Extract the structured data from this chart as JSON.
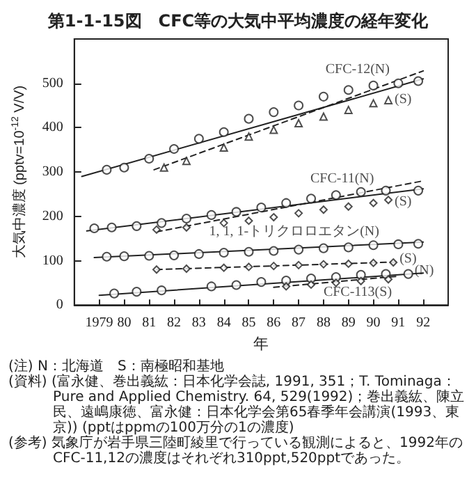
{
  "chart_data": {
    "type": "line",
    "title": "第1-1-15図　CFC等の大気中平均濃度の経年変化",
    "xlabel": "年",
    "ylabel": "大気中濃度 (pptv=10$^{-12}$ V/V)",
    "xlim": [
      1978,
      1993
    ],
    "xticks": [
      {
        "value": 1979,
        "label": "1979"
      },
      {
        "value": 1980,
        "label": "80"
      },
      {
        "value": 1981,
        "label": "81"
      },
      {
        "value": 1982,
        "label": "82"
      },
      {
        "value": 1983,
        "label": "83"
      },
      {
        "value": 1984,
        "label": "84"
      },
      {
        "value": 1985,
        "label": "85"
      },
      {
        "value": 1986,
        "label": "86"
      },
      {
        "value": 1987,
        "label": "87"
      },
      {
        "value": 1988,
        "label": "88"
      },
      {
        "value": 1989,
        "label": "89"
      },
      {
        "value": 1990,
        "label": "90"
      },
      {
        "value": 1991,
        "label": "91"
      },
      {
        "value": 1992,
        "label": "92"
      }
    ],
    "ylim": [
      0,
      600
    ],
    "yticks": [
      0,
      100,
      200,
      300,
      400,
      500
    ],
    "grid": false,
    "series": [
      {
        "type": "scatter",
        "name": "CFC-12(N)",
        "marker": "circle",
        "color": "#222222",
        "x": [
          1979.3,
          1980,
          1981,
          1982,
          1983,
          1984,
          1985,
          1986,
          1987,
          1988,
          1989,
          1990,
          1991,
          1991.8
        ],
        "values": [
          305,
          310,
          330,
          352,
          375,
          390,
          420,
          435,
          450,
          470,
          485,
          495,
          500,
          505
        ]
      },
      {
        "type": "line",
        "marker": "none",
        "line_style": "solid",
        "color": "#222222",
        "x": [
          1978.3,
          1992
        ],
        "values": [
          290,
          510
        ]
      },
      {
        "type": "scatter",
        "name": "(S)",
        "marker": "triangle",
        "color": "#222222",
        "x": [
          1981.6,
          1982.5,
          1984,
          1985,
          1986,
          1987,
          1988,
          1989,
          1990,
          1990.6
        ],
        "values": [
          310,
          325,
          355,
          380,
          395,
          410,
          425,
          440,
          455,
          462
        ]
      },
      {
        "type": "line",
        "marker": "none",
        "line_style": "dashed",
        "color": "#222222",
        "x": [
          1981.2,
          1992
        ],
        "values": [
          305,
          528
        ]
      },
      {
        "type": "scatter",
        "name": "CFC-11(N)",
        "marker": "circle",
        "color": "#222222",
        "x": [
          1978.8,
          1979.5,
          1980.5,
          1981.5,
          1982.5,
          1983.5,
          1984.5,
          1985.5,
          1986.5,
          1987.5,
          1988.5,
          1989.5,
          1990.5,
          1991.8
        ],
        "values": [
          173,
          175,
          178,
          185,
          195,
          203,
          210,
          220,
          230,
          240,
          248,
          255,
          258,
          258
        ]
      },
      {
        "type": "line",
        "marker": "none",
        "line_style": "solid",
        "color": "#222222",
        "x": [
          1978.5,
          1992
        ],
        "values": [
          167,
          262
        ]
      },
      {
        "type": "scatter",
        "name": "(S)",
        "marker": "diamond",
        "color": "#222222",
        "x": [
          1981.3,
          1982.5,
          1984,
          1985,
          1986,
          1987,
          1988,
          1989,
          1990,
          1990.6
        ],
        "values": [
          170,
          175,
          185,
          190,
          198,
          207,
          215,
          222,
          230,
          237
        ]
      },
      {
        "type": "line",
        "marker": "none",
        "line_style": "dashed",
        "color": "#222222",
        "x": [
          1981.3,
          1992
        ],
        "values": [
          165,
          280
        ]
      },
      {
        "type": "scatter",
        "name": "1, 1, 1-トリクロロエタン(N)",
        "marker": "circle",
        "color": "#222222",
        "x": [
          1979.3,
          1980,
          1981,
          1982,
          1983,
          1984,
          1985,
          1986,
          1987,
          1988,
          1989,
          1990,
          1991,
          1991.8
        ],
        "values": [
          109,
          110,
          111,
          112,
          115,
          118,
          120,
          122,
          125,
          128,
          130,
          135,
          137,
          138
        ]
      },
      {
        "type": "line",
        "marker": "none",
        "line_style": "solid",
        "color": "#222222",
        "x": [
          1978.8,
          1992
        ],
        "values": [
          107,
          142
        ]
      },
      {
        "type": "scatter",
        "name": "(S)",
        "marker": "diamond",
        "color": "#222222",
        "x": [
          1981.3,
          1982.5,
          1984,
          1985,
          1986,
          1987,
          1988,
          1989,
          1990,
          1990.8
        ],
        "values": [
          80,
          82,
          84,
          86,
          88,
          90,
          92,
          93,
          95,
          96
        ]
      },
      {
        "type": "line",
        "marker": "none",
        "line_style": "dashed",
        "color": "#222222",
        "x": [
          1981.3,
          1990.9
        ],
        "values": [
          80,
          97
        ]
      },
      {
        "type": "scatter",
        "name": "(N)",
        "marker": "circle",
        "color": "#222222",
        "x": [
          1979.6,
          1980.5,
          1981.5,
          1983.5,
          1984.5,
          1985.5,
          1986.5,
          1987.5,
          1988.5,
          1989.5,
          1990.5,
          1991.4
        ],
        "values": [
          26,
          30,
          33,
          42,
          45,
          52,
          55,
          60,
          63,
          68,
          70,
          70
        ]
      },
      {
        "type": "line",
        "marker": "none",
        "line_style": "solid",
        "color": "#222222",
        "x": [
          1979,
          1992
        ],
        "values": [
          22,
          72
        ]
      },
      {
        "type": "scatter",
        "name": "CFC-113(S)",
        "marker": "diamond",
        "color": "#222222",
        "x": [
          1986.5,
          1987.5,
          1988.5,
          1989.5,
          1990.6
        ],
        "values": [
          42,
          46,
          50,
          54,
          58
        ]
      },
      {
        "type": "line",
        "marker": "none",
        "line_style": "dashed",
        "color": "#222222",
        "x": [
          1986,
          1991
        ],
        "values": [
          40,
          65
        ]
      }
    ],
    "annotations": [
      "(注) N：北海道　S：南極昭和基地",
      "(資料) (富永健、巻出義紘：日本化学会誌, 1991, 351；T. Tominaga：Pure and Applied Chemistry. 64, 529(1992)；巻出義紘、陳立民、遠嶋康徳、富永健：日本化学会第65春季年会講演(1993、東京)) (pptはppmの100万分の1の濃度)",
      "(参考) 気象庁が岩手県三陸町綾里で行っている観測によると、1992年のCFC-11,12の濃度はそれぞれ310ppt,520pptであった。"
    ]
  }
}
